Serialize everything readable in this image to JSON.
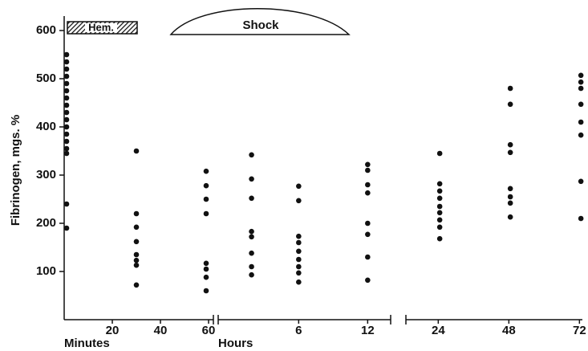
{
  "chart_data": {
    "type": "scatter",
    "y_label": "Fibrinogen, mgs. %",
    "ylim": [
      0,
      630
    ],
    "yticks": [
      100,
      200,
      300,
      400,
      500,
      600
    ],
    "annotations": [
      "Hem.",
      "Shock"
    ],
    "segments": [
      {
        "label": "Minutes",
        "xlim": [
          0,
          62
        ],
        "xticks": [
          20,
          40,
          60
        ]
      },
      {
        "label": "Hours",
        "xlim": [
          -1,
          14
        ],
        "xticks": [
          6,
          12
        ]
      },
      {
        "label": null,
        "xlim": [
          13,
          73
        ],
        "xticks": [
          24,
          48,
          72
        ]
      }
    ],
    "columns": [
      {
        "segment": 0,
        "x": 1,
        "values": [
          550,
          535,
          520,
          505,
          490,
          475,
          460,
          445,
          430,
          415,
          400,
          385,
          370,
          355,
          345,
          240,
          190
        ]
      },
      {
        "segment": 0,
        "x": 30,
        "values": [
          350,
          220,
          192,
          162,
          135,
          123,
          113,
          72
        ]
      },
      {
        "segment": 0,
        "x": 59,
        "values": [
          308,
          278,
          250,
          220,
          117,
          105,
          88,
          60
        ]
      },
      {
        "segment": 1,
        "x": 1.9,
        "values": [
          342,
          292,
          252,
          183,
          172,
          138,
          110,
          93
        ]
      },
      {
        "segment": 1,
        "x": 6,
        "values": [
          277,
          247,
          173,
          160,
          142,
          125,
          110,
          97,
          78
        ]
      },
      {
        "segment": 1,
        "x": 12,
        "values": [
          322,
          310,
          280,
          263,
          200,
          177,
          130,
          82
        ]
      },
      {
        "segment": 2,
        "x": 24.5,
        "values": [
          345,
          282,
          267,
          252,
          235,
          222,
          207,
          192,
          168
        ]
      },
      {
        "segment": 2,
        "x": 48.5,
        "values": [
          480,
          447,
          363,
          347,
          272,
          255,
          242,
          213
        ]
      },
      {
        "segment": 2,
        "x": 72.5,
        "values": [
          507,
          493,
          480,
          447,
          410,
          383,
          287,
          210
        ]
      }
    ]
  }
}
